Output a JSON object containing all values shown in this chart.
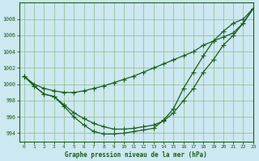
{
  "title": "Graphe pression niveau de la mer (hPa)",
  "bg_color": "#cce8f0",
  "grid_color": "#88bb88",
  "line_color": "#1a5c1a",
  "xlim": [
    -0.5,
    23
  ],
  "ylim": [
    993.0,
    1010.0
  ],
  "yticks": [
    994,
    996,
    998,
    1000,
    1002,
    1004,
    1006,
    1008
  ],
  "xticks": [
    0,
    1,
    2,
    3,
    4,
    5,
    6,
    7,
    8,
    9,
    10,
    11,
    12,
    13,
    14,
    15,
    16,
    17,
    18,
    19,
    20,
    21,
    22,
    23
  ],
  "series1": [
    1001.0,
    1000.0,
    999.5,
    999.2,
    999.0,
    999.0,
    999.2,
    999.5,
    999.8,
    1000.2,
    1000.6,
    1001.0,
    1001.5,
    1002.0,
    1002.5,
    1003.0,
    1003.5,
    1004.0,
    1004.8,
    1005.3,
    1005.8,
    1006.3,
    1007.5,
    1009.3
  ],
  "series2": [
    1001.0,
    999.8,
    998.8,
    998.5,
    997.5,
    996.5,
    995.8,
    995.2,
    994.8,
    994.5,
    994.5,
    994.6,
    994.8,
    995.0,
    995.5,
    996.5,
    998.0,
    999.5,
    1001.5,
    1003.0,
    1004.8,
    1006.0,
    1007.5,
    1009.3
  ],
  "series3": [
    1001.0,
    999.8,
    998.8,
    998.5,
    997.3,
    996.0,
    995.0,
    994.2,
    993.9,
    993.9,
    994.0,
    994.2,
    994.4,
    994.6,
    995.6,
    997.0,
    999.5,
    1001.5,
    1003.5,
    1005.3,
    1006.5,
    1007.5,
    1008.0,
    1009.3
  ]
}
